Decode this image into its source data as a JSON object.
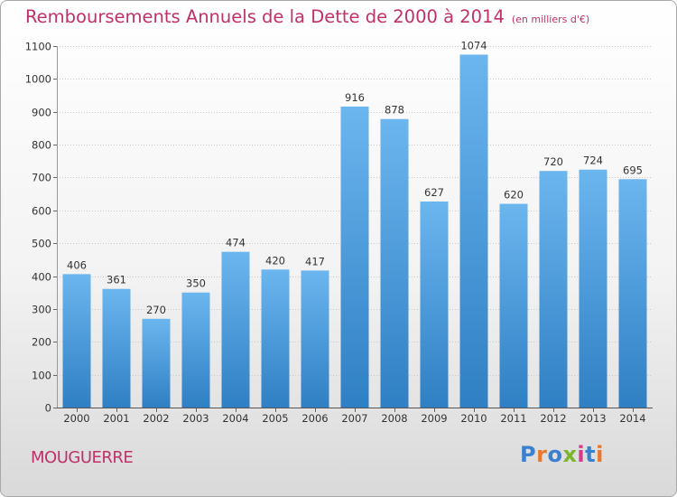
{
  "title": "Remboursements Annuels de la Dette de 2000 à 2014",
  "subtitle": "(en milliers d'€)",
  "place": "MOUGUERRE",
  "logo": {
    "text": "Proxiti",
    "letter_colors": [
      "#3a7fd0",
      "#e8782a",
      "#3a7fd0",
      "#7ab52e",
      "#d63a8a",
      "#3a7fd0",
      "#e8782a"
    ]
  },
  "colors": {
    "bar_top": "#6cb6ef",
    "bar_bottom": "#2f7fc4",
    "title": "#c0306a",
    "grid": "#c8c8c8"
  },
  "chart_data": {
    "type": "bar",
    "title": "Remboursements Annuels de la Dette de 2000 à 2014",
    "subtitle": "(en milliers d'€)",
    "xlabel": "",
    "ylabel": "",
    "categories": [
      "2000",
      "2001",
      "2002",
      "2003",
      "2004",
      "2005",
      "2006",
      "2007",
      "2008",
      "2009",
      "2010",
      "2011",
      "2012",
      "2013",
      "2014"
    ],
    "values": [
      406,
      361,
      270,
      350,
      474,
      420,
      417,
      916,
      878,
      627,
      1074,
      620,
      720,
      724,
      695
    ],
    "ylim": [
      0,
      1100
    ],
    "yticks": [
      0,
      100,
      200,
      300,
      400,
      500,
      600,
      700,
      800,
      900,
      1000,
      1100
    ],
    "grid": true,
    "data_labels": true,
    "legend": "none"
  }
}
